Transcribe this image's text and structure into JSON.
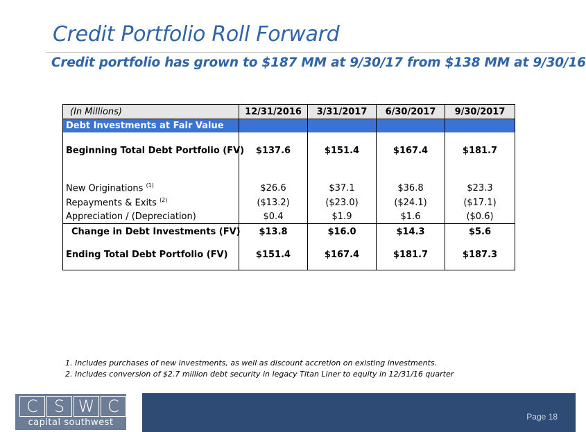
{
  "title": "Credit Portfolio Roll Forward",
  "subtitle": "Credit portfolio has grown to $187 MM at 9/30/17 from $138 MM at 9/30/16",
  "table": {
    "header": {
      "label": "(In Millions)",
      "columns": [
        "12/31/2016",
        "3/31/2017",
        "6/30/2017",
        "9/30/2017"
      ]
    },
    "section_label": "Debt Investments at Fair Value",
    "beginning": {
      "label": "Beginning Total Debt Portfolio (FV)",
      "values": [
        "$137.6",
        "$151.4",
        "$167.4",
        "$181.7"
      ]
    },
    "new_originations": {
      "label": "New Originations",
      "footnote": "(1)",
      "values": [
        "$26.6",
        "$37.1",
        "$36.8",
        "$23.3"
      ]
    },
    "repayments": {
      "label": "Repayments & Exits",
      "footnote": "(2)",
      "values": [
        "($13.2)",
        "($23.0)",
        "($24.1)",
        "($17.1)"
      ]
    },
    "appreciation": {
      "label": "Appreciation / (Depreciation)",
      "values": [
        "$0.4",
        "$1.9",
        "$1.6",
        "($0.6)"
      ]
    },
    "change": {
      "label": "Change in Debt Investments (FV)",
      "values": [
        "$13.8",
        "$16.0",
        "$14.3",
        "$5.6"
      ]
    },
    "ending": {
      "label": "Ending Total Debt Portfolio (FV)",
      "values": [
        "$151.4",
        "$167.4",
        "$181.7",
        "$187.3"
      ]
    }
  },
  "footnotes": [
    "Includes purchases of new investments, as well as discount accretion on existing investments.",
    "Includes conversion of $2.7 million debt security in legacy Titan Liner to equity in 12/31/16 quarter"
  ],
  "logo": {
    "letters": [
      "C",
      "S",
      "W",
      "C"
    ],
    "name": "capital southwest"
  },
  "page_label": "Page 18",
  "colors": {
    "title_blue": "#2f64a6",
    "section_blue": "#3b73d5",
    "footer_navy": "#2e4b75",
    "logo_slate": "#6d7d96"
  }
}
